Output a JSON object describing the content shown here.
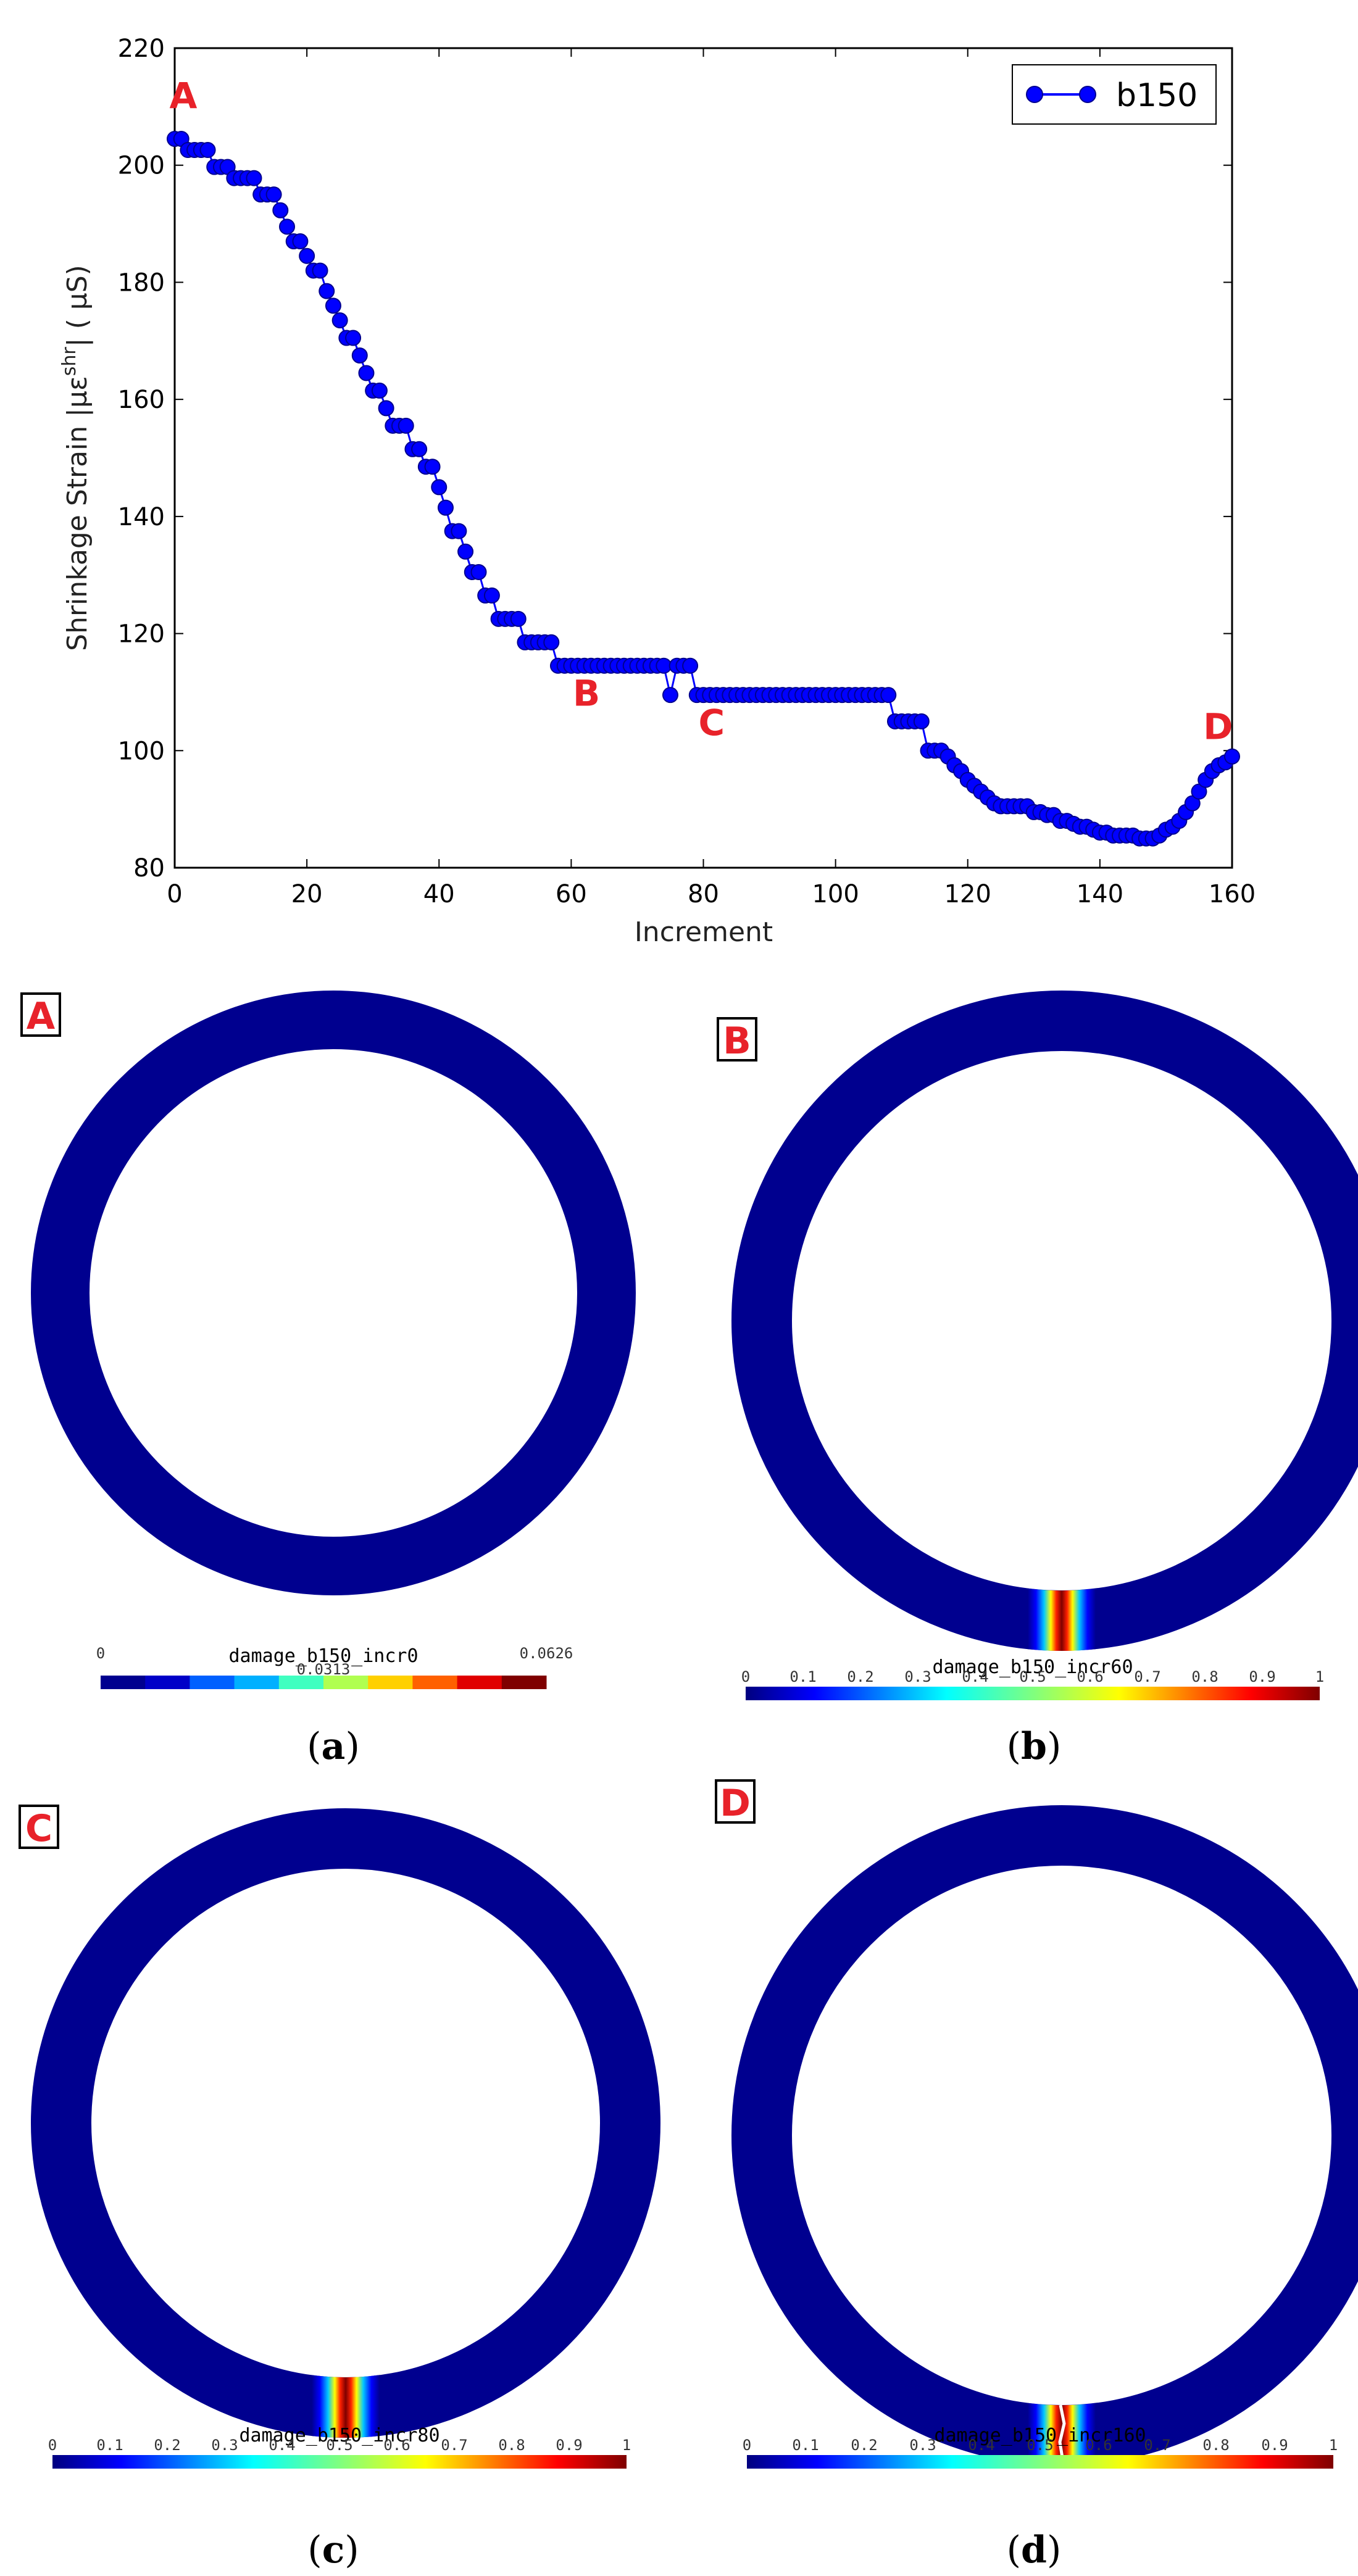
{
  "chart_data": {
    "type": "line",
    "xlabel": "Increment",
    "ylabel": "Shrinkage Strain |με",
    "ylabel_sup": "shr",
    "ylabel_tail": "| ( μS)",
    "xlim": [
      0,
      160
    ],
    "ylim": [
      80,
      220
    ],
    "xticks": [
      "0",
      "20",
      "40",
      "60",
      "80",
      "100",
      "120",
      "140",
      "160"
    ],
    "yticks": [
      "80",
      "100",
      "120",
      "140",
      "160",
      "180",
      "200",
      "220"
    ],
    "grid": false,
    "legend_position": "top-right",
    "series": [
      {
        "name": "b150",
        "color": "#0000ff",
        "points": [
          [
            0,
            204.5
          ],
          [
            1,
            204.5
          ],
          [
            2,
            202.6
          ],
          [
            3,
            202.6
          ],
          [
            4,
            202.6
          ],
          [
            5,
            202.6
          ],
          [
            6,
            199.7
          ],
          [
            7,
            199.7
          ],
          [
            8,
            199.7
          ],
          [
            9,
            197.8
          ],
          [
            10,
            197.8
          ],
          [
            11,
            197.8
          ],
          [
            12,
            197.8
          ],
          [
            13,
            195.0
          ],
          [
            14,
            195.0
          ],
          [
            15,
            195.0
          ],
          [
            16,
            192.3
          ],
          [
            17,
            189.5
          ],
          [
            18,
            187.0
          ],
          [
            19,
            187.0
          ],
          [
            20,
            184.5
          ],
          [
            21,
            182.0
          ],
          [
            22,
            182.0
          ],
          [
            23,
            178.5
          ],
          [
            24,
            176.0
          ],
          [
            25,
            173.5
          ],
          [
            26,
            170.5
          ],
          [
            27,
            170.5
          ],
          [
            28,
            167.5
          ],
          [
            29,
            164.5
          ],
          [
            30,
            161.5
          ],
          [
            31,
            161.5
          ],
          [
            32,
            158.5
          ],
          [
            33,
            155.5
          ],
          [
            34,
            155.5
          ],
          [
            35,
            155.5
          ],
          [
            36,
            151.5
          ],
          [
            37,
            151.5
          ],
          [
            38,
            148.5
          ],
          [
            39,
            148.5
          ],
          [
            40,
            145.0
          ],
          [
            41,
            141.5
          ],
          [
            42,
            137.5
          ],
          [
            43,
            137.5
          ],
          [
            44,
            134.0
          ],
          [
            45,
            130.5
          ],
          [
            46,
            130.5
          ],
          [
            47,
            126.5
          ],
          [
            48,
            126.5
          ],
          [
            49,
            122.5
          ],
          [
            50,
            122.5
          ],
          [
            51,
            122.5
          ],
          [
            52,
            122.5
          ],
          [
            53,
            118.5
          ],
          [
            54,
            118.5
          ],
          [
            55,
            118.5
          ],
          [
            56,
            118.5
          ],
          [
            57,
            118.5
          ],
          [
            58,
            114.5
          ],
          [
            59,
            114.5
          ],
          [
            60,
            114.5
          ],
          [
            61,
            114.5
          ],
          [
            62,
            114.5
          ],
          [
            63,
            114.5
          ],
          [
            64,
            114.5
          ],
          [
            65,
            114.5
          ],
          [
            66,
            114.5
          ],
          [
            67,
            114.5
          ],
          [
            68,
            114.5
          ],
          [
            69,
            114.5
          ],
          [
            70,
            114.5
          ],
          [
            71,
            114.5
          ],
          [
            72,
            114.5
          ],
          [
            73,
            114.5
          ],
          [
            74,
            114.5
          ],
          [
            75,
            109.5
          ],
          [
            76,
            114.5
          ],
          [
            77,
            114.5
          ],
          [
            78,
            114.5
          ],
          [
            79,
            109.5
          ],
          [
            80,
            109.5
          ],
          [
            81,
            109.5
          ],
          [
            82,
            109.5
          ],
          [
            83,
            109.5
          ],
          [
            84,
            109.5
          ],
          [
            85,
            109.5
          ],
          [
            86,
            109.5
          ],
          [
            87,
            109.5
          ],
          [
            88,
            109.5
          ],
          [
            89,
            109.5
          ],
          [
            90,
            109.5
          ],
          [
            91,
            109.5
          ],
          [
            92,
            109.5
          ],
          [
            93,
            109.5
          ],
          [
            94,
            109.5
          ],
          [
            95,
            109.5
          ],
          [
            96,
            109.5
          ],
          [
            97,
            109.5
          ],
          [
            98,
            109.5
          ],
          [
            99,
            109.5
          ],
          [
            100,
            109.5
          ],
          [
            101,
            109.5
          ],
          [
            102,
            109.5
          ],
          [
            103,
            109.5
          ],
          [
            104,
            109.5
          ],
          [
            105,
            109.5
          ],
          [
            106,
            109.5
          ],
          [
            107,
            109.5
          ],
          [
            108,
            109.5
          ],
          [
            109,
            105.0
          ],
          [
            110,
            105.0
          ],
          [
            111,
            105.0
          ],
          [
            112,
            105.0
          ],
          [
            113,
            105.0
          ],
          [
            114,
            100.0
          ],
          [
            115,
            100.0
          ],
          [
            116,
            100.0
          ],
          [
            117,
            99.0
          ],
          [
            118,
            97.5
          ],
          [
            119,
            96.5
          ],
          [
            120,
            95.0
          ],
          [
            121,
            94.0
          ],
          [
            122,
            93.0
          ],
          [
            123,
            92.0
          ],
          [
            124,
            91.0
          ],
          [
            125,
            90.5
          ],
          [
            126,
            90.5
          ],
          [
            127,
            90.5
          ],
          [
            128,
            90.5
          ],
          [
            129,
            90.5
          ],
          [
            130,
            89.5
          ],
          [
            131,
            89.5
          ],
          [
            132,
            89.0
          ],
          [
            133,
            89.0
          ],
          [
            134,
            88.0
          ],
          [
            135,
            88.0
          ],
          [
            136,
            87.5
          ],
          [
            137,
            87.0
          ],
          [
            138,
            87.0
          ],
          [
            139,
            86.5
          ],
          [
            140,
            86.0
          ],
          [
            141,
            86.0
          ],
          [
            142,
            85.5
          ],
          [
            143,
            85.5
          ],
          [
            144,
            85.5
          ],
          [
            145,
            85.5
          ],
          [
            146,
            85.0
          ],
          [
            147,
            85.0
          ],
          [
            148,
            85.0
          ],
          [
            149,
            85.5
          ],
          [
            150,
            86.5
          ],
          [
            151,
            87.0
          ],
          [
            152,
            88.0
          ],
          [
            153,
            89.5
          ],
          [
            154,
            91.0
          ],
          [
            155,
            93.0
          ],
          [
            156,
            95.0
          ],
          [
            157,
            96.5
          ],
          [
            158,
            97.5
          ],
          [
            159,
            98.0
          ],
          [
            160,
            99.0
          ]
        ]
      }
    ],
    "annotations": [
      {
        "text": "A",
        "x": 0,
        "y": 204.5
      },
      {
        "text": "B",
        "x": 61,
        "y": 114.5
      },
      {
        "text": "C",
        "x": 79,
        "y": 109.5
      },
      {
        "text": "D",
        "x": 159,
        "y": 98.0
      }
    ]
  },
  "panels": [
    {
      "letter": "A",
      "caption_letter": "a",
      "colorbar_title": "damage_b150_incr0",
      "ticks": [
        "0",
        "0.0313",
        "0.0626"
      ],
      "cmap": "discrete",
      "crack": "none"
    },
    {
      "letter": "B",
      "caption_letter": "b",
      "colorbar_title": "damage_b150_incr60",
      "ticks": [
        "0",
        "0.1",
        "0.2",
        "0.3",
        "0.4",
        "0.5",
        "0.6",
        "0.7",
        "0.8",
        "0.9",
        "1"
      ],
      "cmap": "jet",
      "crack": "band"
    },
    {
      "letter": "C",
      "caption_letter": "c",
      "colorbar_title": "damage_b150_incr80",
      "ticks": [
        "0",
        "0.1",
        "0.2",
        "0.3",
        "0.4",
        "0.5",
        "0.6",
        "0.7",
        "0.8",
        "0.9",
        "1"
      ],
      "cmap": "jet",
      "crack": "band"
    },
    {
      "letter": "D",
      "caption_letter": "d",
      "colorbar_title": "damage_b150_incr160",
      "ticks": [
        "0",
        "0.1",
        "0.2",
        "0.3",
        "0.4",
        "0.5",
        "0.6",
        "0.7",
        "0.8",
        "0.9",
        "1"
      ],
      "cmap": "jet",
      "crack": "open"
    }
  ],
  "caption_paren_open": "(",
  "caption_paren_close": ")",
  "colors": {
    "ring": "#00008f",
    "label_red": "#e8222a",
    "line": "#0000ff"
  }
}
